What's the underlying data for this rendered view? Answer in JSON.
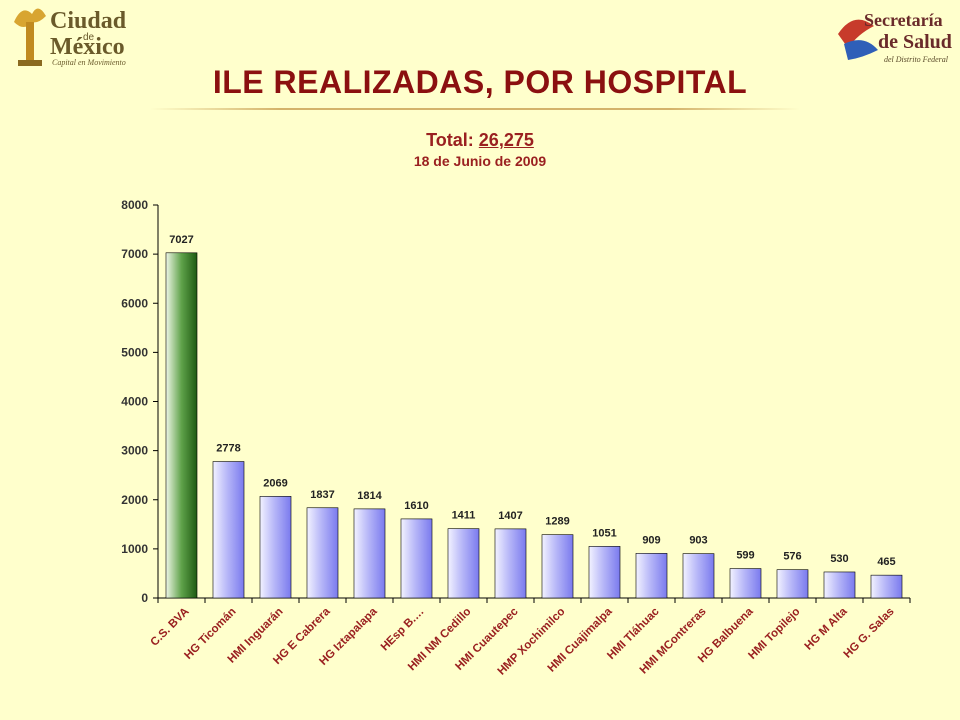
{
  "header": {
    "logo_left_text": [
      "Ciudad",
      "de",
      "México",
      "Capital en Movimiento"
    ],
    "logo_right_text": [
      "Secretaría",
      "de Salud",
      "del Distrito Federal"
    ],
    "title": "ILE REALIZADAS, POR HOSPITAL",
    "total_label": "Total:",
    "total_value": "26,275",
    "date": "18 de Junio de 2009"
  },
  "colors": {
    "background": "#ffffcc",
    "title": "#8b1010",
    "highlight_bar": "#2e7d1f",
    "bar": "#b8b8f8"
  },
  "chart_data": {
    "type": "bar",
    "categories": [
      "C.S. BVA",
      "HG Ticomán",
      "HMI Inguarán",
      "HG E Cabrera",
      "HG Iztapalapa",
      "HEsp B.…",
      "HMI NM Cedillo",
      "HMI Cuautepec",
      "HMP Xochimilco",
      "HMI Cuajimalpa",
      "HMI Tláhuac",
      "HMI MContreras",
      "HG Balbuena",
      "HMI Topilejo",
      "HG M Alta",
      "HG G. Salas"
    ],
    "values": [
      7027,
      2778,
      2069,
      1837,
      1814,
      1610,
      1411,
      1407,
      1289,
      1051,
      909,
      903,
      599,
      576,
      530,
      465
    ],
    "data_labels": [
      "7027",
      "2778",
      "2069",
      "1837",
      "1814",
      "1610",
      "1411",
      "1407",
      "1289",
      "1051",
      "909",
      "903",
      "599",
      "576",
      "530",
      "465"
    ],
    "yticks": [
      0,
      1000,
      2000,
      3000,
      4000,
      5000,
      6000,
      7000,
      8000
    ],
    "ylim": [
      0,
      8000
    ],
    "xlabel": "",
    "ylabel": "",
    "grid": false,
    "legend": "none"
  }
}
